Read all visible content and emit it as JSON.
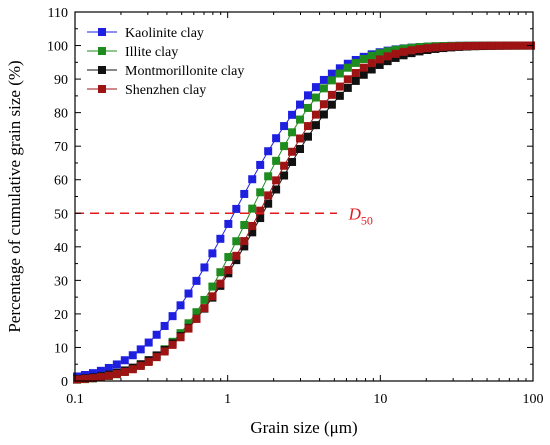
{
  "chart_data": {
    "type": "scatter",
    "xlabel": "Grain size (μm)",
    "ylabel": "Percentage of cumulative grain size (%)",
    "xscale": "log",
    "xlim": [
      0.1,
      100
    ],
    "ylim": [
      0,
      110
    ],
    "xticks": [
      0.1,
      1,
      10,
      100
    ],
    "xtick_labels": [
      "0.1",
      "1",
      "10",
      "100"
    ],
    "yticks": [
      0,
      10,
      20,
      30,
      40,
      50,
      60,
      70,
      80,
      90,
      100,
      110
    ],
    "ytick_labels": [
      "0",
      "10",
      "20",
      "30",
      "40",
      "50",
      "60",
      "70",
      "80",
      "90",
      "100",
      "110"
    ],
    "legend_position": "top-left",
    "grid": false,
    "series": [
      {
        "name": "Kaolinite clay",
        "color": "#1f1fe0",
        "d50": 1.1,
        "sigma": 1.07,
        "ymax_at": 12
      },
      {
        "name": "Illite clay",
        "color": "#1e8c1e",
        "d50": 1.4,
        "sigma": 0.98,
        "ymax_at": 15
      },
      {
        "name": "Montmorillonite clay",
        "color": "#111111",
        "d50": 1.7,
        "sigma": 1.12,
        "ymax_at": 30
      },
      {
        "name": "Shenzhen clay",
        "color": "#9e1414",
        "d50": 1.6,
        "sigma": 1.05,
        "ymax_at": 20
      }
    ],
    "annotations": [
      {
        "text": "D",
        "subscript": "50",
        "y": 50,
        "x_start": 0.1,
        "x_end": 5.2,
        "x_text": 6.2,
        "color": "#e31a1c",
        "style": "dashed"
      }
    ]
  }
}
